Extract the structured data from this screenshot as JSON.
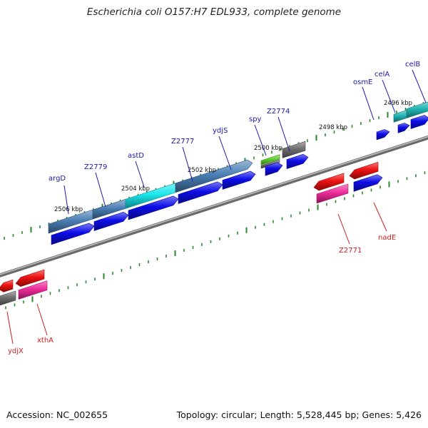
{
  "title": "Escherichia coli O157:H7 EDL933, complete genome",
  "footer": {
    "accession": "Accession: NC_002655",
    "summary": "Topology: circular; Length: 5,528,445 bp; Genes: 5,426"
  },
  "colors": {
    "forward_label": "#1a1aaa",
    "reverse_label": "#cc2020",
    "backbone": "#8c8c8c",
    "tick": "#2a8a2a",
    "cds_blue": "#0d0de8",
    "cds_red": "#ee1111",
    "rna_pink": "#ee2a9a",
    "steel_blue": "#4a7fb5",
    "cyan": "#19e6ec",
    "teal": "#22b5b5",
    "gray": "#6e6e6e",
    "green": "#5fd22c"
  },
  "kbp_labels": [
    "2506 kbp",
    "2504 kbp",
    "2502 kbp",
    "2500 kbp",
    "2498 kbp",
    "2496 kbp"
  ],
  "forward_genes": [
    "argD",
    "Z2779",
    "astD",
    "Z2777",
    "ydjS",
    "spy",
    "Z2774",
    "osmE",
    "celA",
    "celB"
  ],
  "reverse_genes": [
    "ydjX",
    "xthA",
    "Z2771",
    "nadE"
  ]
}
